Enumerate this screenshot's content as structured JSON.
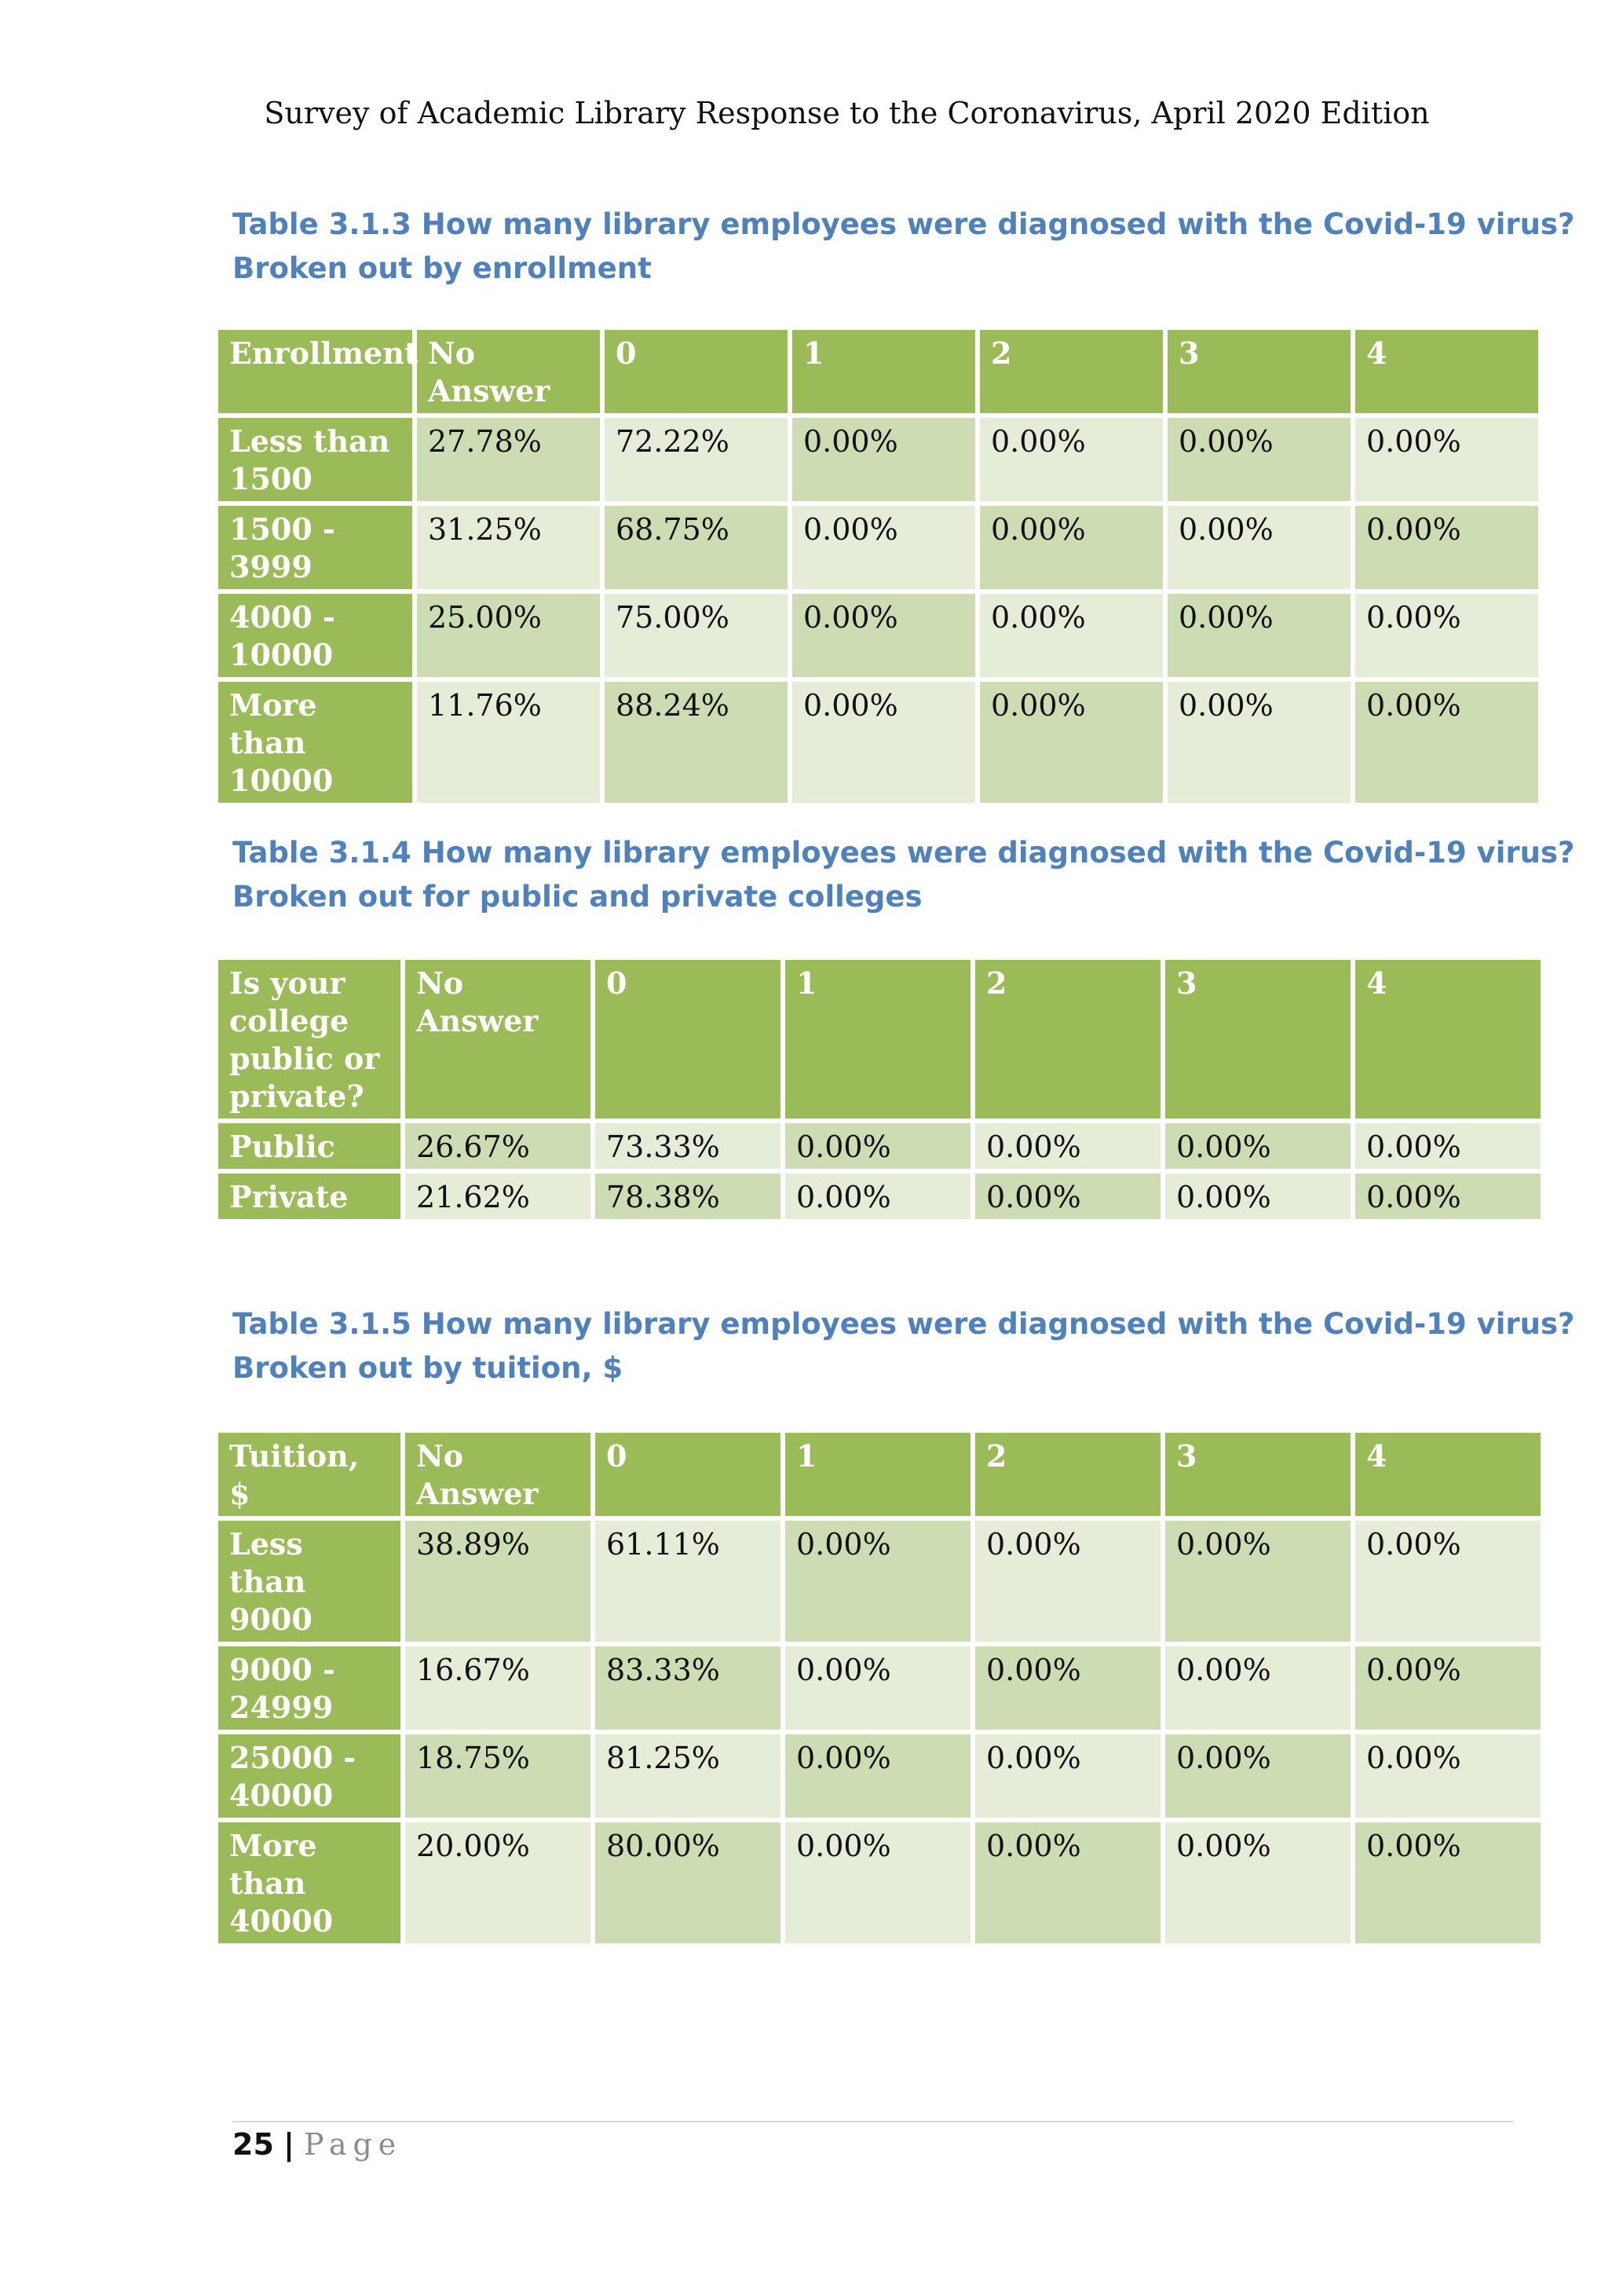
{
  "header": {
    "running_title": "Survey of Academic Library Response to the  Coronavirus, April 2020 Edition"
  },
  "tables": [
    {
      "caption_line1": "Table 3.1.3 How many library employees were diagnosed with the Covid-19 virus?",
      "caption_line2": "Broken out by enrollment",
      "columns": [
        "Enrollment",
        "No Answer",
        "0",
        "1",
        "2",
        "3",
        "4"
      ],
      "rows": [
        {
          "label": "Less than 1500",
          "values": [
            "27.78%",
            "72.22%",
            "0.00%",
            "0.00%",
            "0.00%",
            "0.00%"
          ]
        },
        {
          "label": "1500 - 3999",
          "values": [
            "31.25%",
            "68.75%",
            "0.00%",
            "0.00%",
            "0.00%",
            "0.00%"
          ]
        },
        {
          "label": "4000 - 10000",
          "values": [
            "25.00%",
            "75.00%",
            "0.00%",
            "0.00%",
            "0.00%",
            "0.00%"
          ]
        },
        {
          "label": "More than 10000",
          "values": [
            "11.76%",
            "88.24%",
            "0.00%",
            "0.00%",
            "0.00%",
            "0.00%"
          ]
        }
      ]
    },
    {
      "caption_line1": "Table 3.1.4 How many library employees were diagnosed with the Covid-19 virus?",
      "caption_line2": "Broken out for public and private colleges",
      "columns": [
        "Is your college public or private?",
        "No Answer",
        "0",
        "1",
        "2",
        "3",
        "4"
      ],
      "rows": [
        {
          "label": "Public",
          "values": [
            "26.67%",
            "73.33%",
            "0.00%",
            "0.00%",
            "0.00%",
            "0.00%"
          ]
        },
        {
          "label": "Private",
          "values": [
            "21.62%",
            "78.38%",
            "0.00%",
            "0.00%",
            "0.00%",
            "0.00%"
          ]
        }
      ]
    },
    {
      "caption_line1": "Table 3.1.5 How many library employees were diagnosed with the Covid-19 virus?",
      "caption_line2": "Broken out by tuition, $",
      "columns": [
        "Tuition, $",
        "No Answer",
        "0",
        "1",
        "2",
        "3",
        "4"
      ],
      "rows": [
        {
          "label": "Less than 9000",
          "values": [
            "38.89%",
            "61.11%",
            "0.00%",
            "0.00%",
            "0.00%",
            "0.00%"
          ]
        },
        {
          "label": "9000 - 24999",
          "values": [
            "16.67%",
            "83.33%",
            "0.00%",
            "0.00%",
            "0.00%",
            "0.00%"
          ]
        },
        {
          "label": "25000 - 40000",
          "values": [
            "18.75%",
            "81.25%",
            "0.00%",
            "0.00%",
            "0.00%",
            "0.00%"
          ]
        },
        {
          "label": "More than 40000",
          "values": [
            "20.00%",
            "80.00%",
            "0.00%",
            "0.00%",
            "0.00%",
            "0.00%"
          ]
        }
      ]
    }
  ],
  "footer": {
    "page_number": "25",
    "separator": "|",
    "page_word": "Page"
  },
  "colors": {
    "header_green": "#9bbb59",
    "band_dark": "#cddcb2",
    "band_light": "#e5edd8",
    "caption_blue": "#4f81bd"
  }
}
